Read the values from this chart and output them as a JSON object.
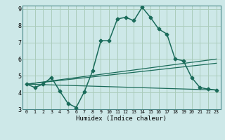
{
  "xlabel": "Humidex (Indice chaleur)",
  "bg_color": "#cde8e8",
  "grid_color": "#aaccbb",
  "line_color": "#1a6b5a",
  "xlim": [
    -0.5,
    23.5
  ],
  "ylim": [
    3,
    9.2
  ],
  "x_ticks": [
    0,
    1,
    2,
    3,
    4,
    5,
    6,
    7,
    8,
    9,
    10,
    11,
    12,
    13,
    14,
    15,
    16,
    17,
    18,
    19,
    20,
    21,
    22,
    23
  ],
  "y_ticks": [
    3,
    4,
    5,
    6,
    7,
    8,
    9
  ],
  "line1_x": [
    0,
    1,
    2,
    3,
    4,
    5,
    6,
    7,
    8,
    9,
    10,
    11,
    12,
    13,
    14,
    15,
    16,
    17,
    18,
    19,
    20,
    21,
    22,
    23
  ],
  "line1_y": [
    4.5,
    4.3,
    4.5,
    4.9,
    4.1,
    3.35,
    3.1,
    4.05,
    5.3,
    7.1,
    7.1,
    8.4,
    8.5,
    8.3,
    9.1,
    8.5,
    7.8,
    7.5,
    6.0,
    5.9,
    4.9,
    4.3,
    4.2,
    4.15
  ],
  "line2_x": [
    0,
    23
  ],
  "line2_y": [
    4.5,
    4.15
  ],
  "line3_x": [
    0,
    23
  ],
  "line3_y": [
    4.5,
    5.75
  ],
  "line4_x": [
    0,
    23
  ],
  "line4_y": [
    4.5,
    6.0
  ]
}
